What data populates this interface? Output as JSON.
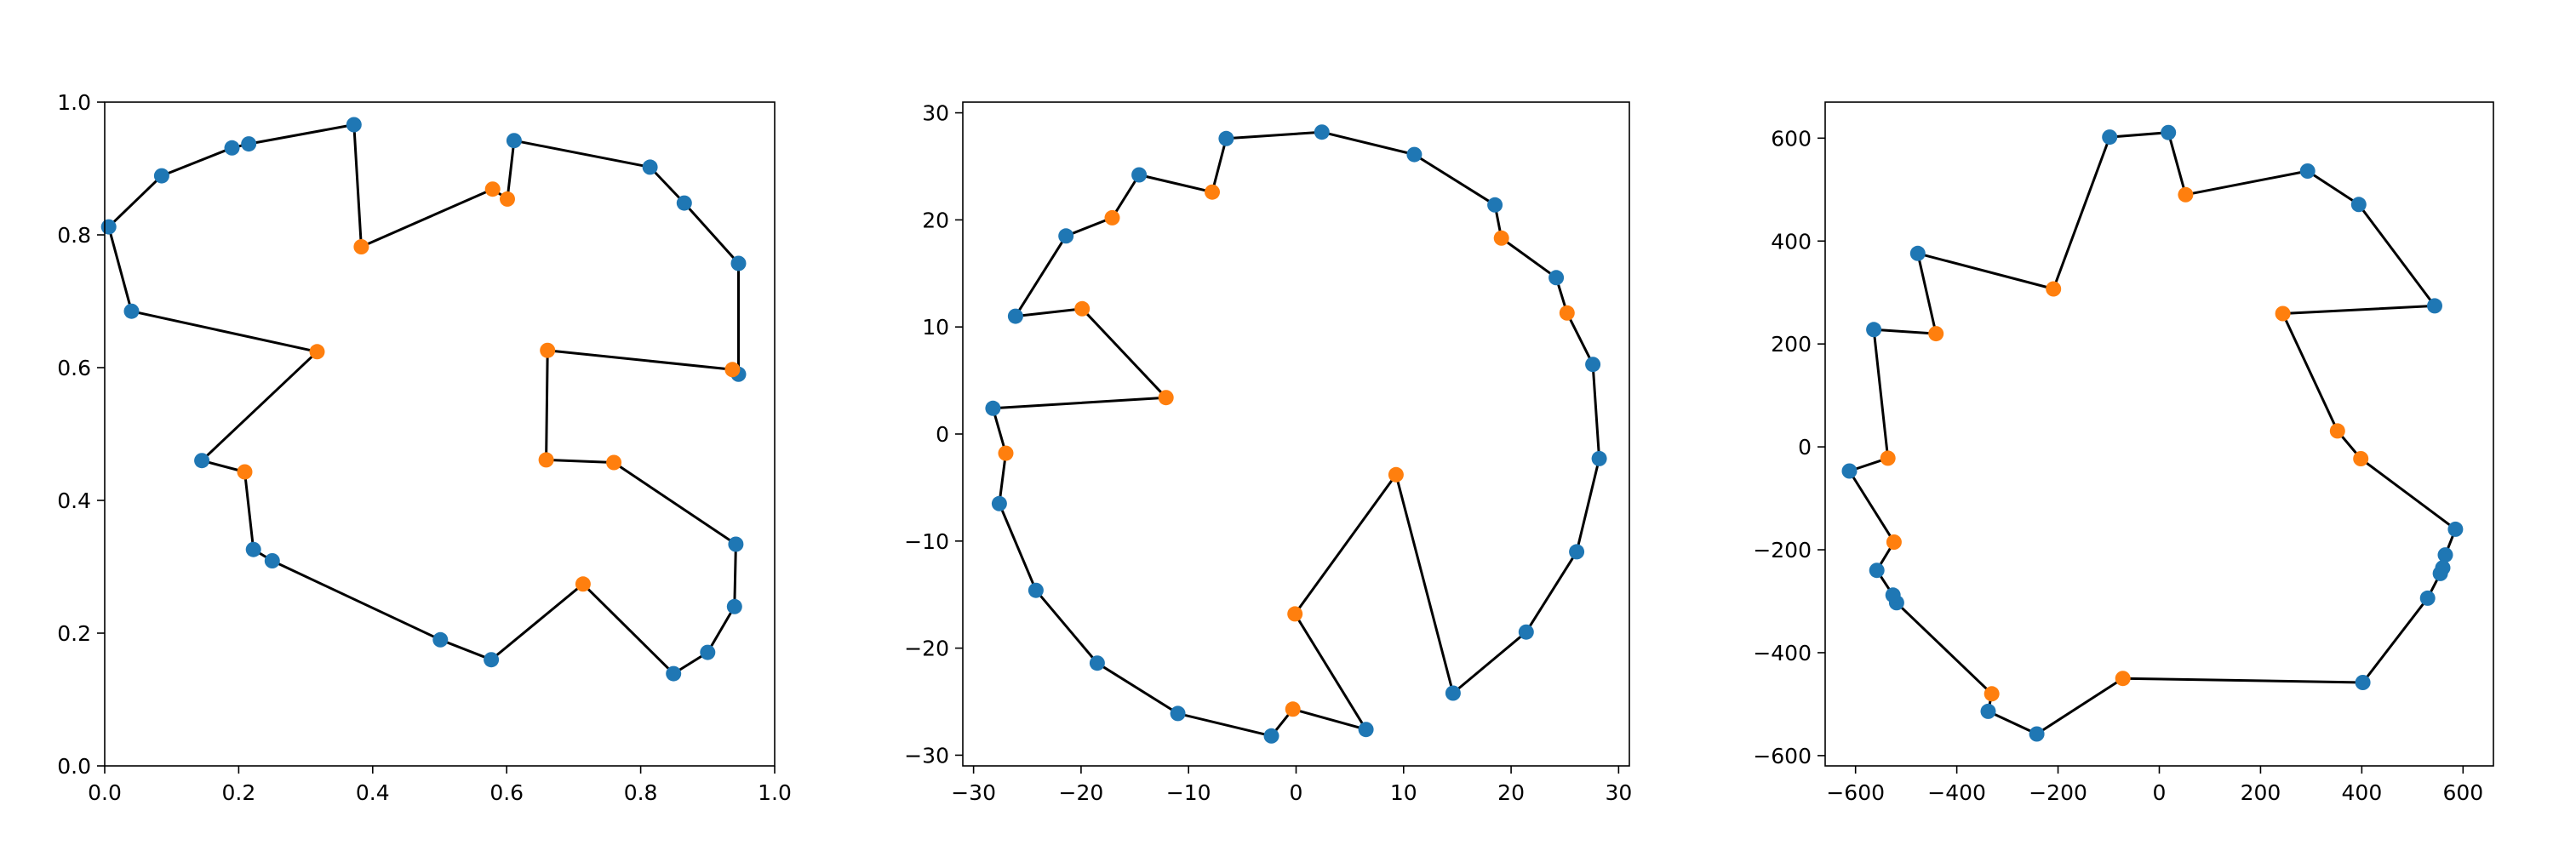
{
  "colors": {
    "hull": "#1f77b4",
    "interior": "#ff7f0e",
    "line": "#000000"
  },
  "chart_data": [
    {
      "type": "scatter",
      "title": "",
      "xlabel": "",
      "ylabel": "",
      "xlim": [
        0,
        1
      ],
      "ylim": [
        0,
        1
      ],
      "xticks": [
        0,
        0.2,
        0.4,
        0.6,
        0.8,
        1
      ],
      "yticks": [
        0,
        0.2,
        0.4,
        0.6,
        0.8,
        1
      ],
      "xtick_labels": [
        "0.0",
        "0.2",
        "0.4",
        "0.6",
        "0.8",
        "1.0"
      ],
      "ytick_labels": [
        "0.0",
        "0.2",
        "0.4",
        "0.6",
        "0.8",
        "1.0"
      ],
      "grid": false,
      "path": [
        [
          0.006,
          0.812,
          "h"
        ],
        [
          0.085,
          0.889,
          "h"
        ],
        [
          0.19,
          0.931,
          "h"
        ],
        [
          0.215,
          0.937,
          "h"
        ],
        [
          0.372,
          0.966,
          "h"
        ],
        [
          0.383,
          0.782,
          "i"
        ],
        [
          0.579,
          0.869,
          "i"
        ],
        [
          0.601,
          0.854,
          "i"
        ],
        [
          0.611,
          0.942,
          "h"
        ],
        [
          0.814,
          0.902,
          "h"
        ],
        [
          0.865,
          0.848,
          "h"
        ],
        [
          0.946,
          0.757,
          "h"
        ],
        [
          0.946,
          0.59,
          "h"
        ],
        [
          0.937,
          0.597,
          "i"
        ],
        [
          0.661,
          0.626,
          "i"
        ],
        [
          0.659,
          0.461,
          "i"
        ],
        [
          0.76,
          0.457,
          "i"
        ],
        [
          0.942,
          0.334,
          "h"
        ],
        [
          0.94,
          0.24,
          "h"
        ],
        [
          0.9,
          0.171,
          "h"
        ],
        [
          0.849,
          0.139,
          "h"
        ],
        [
          0.714,
          0.274,
          "i"
        ],
        [
          0.577,
          0.16,
          "h"
        ],
        [
          0.501,
          0.19,
          "h"
        ],
        [
          0.25,
          0.309,
          "h"
        ],
        [
          0.222,
          0.326,
          "h"
        ],
        [
          0.209,
          0.443,
          "i"
        ],
        [
          0.145,
          0.46,
          "h"
        ],
        [
          0.317,
          0.624,
          "i"
        ],
        [
          0.04,
          0.685,
          "h"
        ]
      ]
    },
    {
      "type": "scatter",
      "title": "",
      "xlabel": "",
      "ylabel": "",
      "xlim": [
        -31,
        31
      ],
      "ylim": [
        -31,
        31
      ],
      "xticks": [
        -30,
        -20,
        -10,
        0,
        10,
        20,
        30
      ],
      "yticks": [
        -30,
        -20,
        -10,
        0,
        10,
        20,
        30
      ],
      "xtick_labels": [
        "−30",
        "−20",
        "−10",
        "0",
        "10",
        "20",
        "30"
      ],
      "ytick_labels": [
        "−30",
        "−20",
        "−10",
        "0",
        "10",
        "20",
        "30"
      ],
      "grid": false,
      "path": [
        [
          2.4,
          28.2,
          "h"
        ],
        [
          11.0,
          26.1,
          "h"
        ],
        [
          18.5,
          21.4,
          "h"
        ],
        [
          19.1,
          18.3,
          "i"
        ],
        [
          24.2,
          14.6,
          "h"
        ],
        [
          25.2,
          11.3,
          "i"
        ],
        [
          27.6,
          6.5,
          "h"
        ],
        [
          28.2,
          -2.3,
          "h"
        ],
        [
          26.1,
          -11.0,
          "h"
        ],
        [
          21.4,
          -18.5,
          "h"
        ],
        [
          14.6,
          -24.2,
          "h"
        ],
        [
          9.3,
          -3.8,
          "i"
        ],
        [
          -0.1,
          -16.8,
          "i"
        ],
        [
          6.5,
          -27.6,
          "h"
        ],
        [
          -0.3,
          -25.7,
          "i"
        ],
        [
          -2.3,
          -28.2,
          "h"
        ],
        [
          -11.0,
          -26.1,
          "h"
        ],
        [
          -18.5,
          -21.4,
          "h"
        ],
        [
          -24.2,
          -14.6,
          "h"
        ],
        [
          -27.6,
          -6.5,
          "h"
        ],
        [
          -27.0,
          -1.8,
          "i"
        ],
        [
          -28.2,
          2.4,
          "h"
        ],
        [
          -12.1,
          3.4,
          "i"
        ],
        [
          -19.9,
          11.7,
          "i"
        ],
        [
          -26.1,
          11.0,
          "h"
        ],
        [
          -21.4,
          18.5,
          "h"
        ],
        [
          -17.1,
          20.2,
          "i"
        ],
        [
          -14.6,
          24.2,
          "h"
        ],
        [
          -7.8,
          22.6,
          "i"
        ],
        [
          -6.5,
          27.6,
          "h"
        ]
      ]
    },
    {
      "type": "scatter",
      "title": "",
      "xlabel": "",
      "ylabel": "",
      "xlim": [
        -660,
        660
      ],
      "ylim": [
        -620,
        670
      ],
      "xticks": [
        -600,
        -400,
        -200,
        0,
        200,
        400,
        600
      ],
      "yticks": [
        -600,
        -400,
        -200,
        0,
        200,
        400,
        600
      ],
      "xtick_labels": [
        "−600",
        "−400",
        "−200",
        "0",
        "200",
        "400",
        "600"
      ],
      "ytick_labels": [
        "−600",
        "−400",
        "−200",
        "0",
        "200",
        "400",
        "600"
      ],
      "grid": false,
      "path": [
        [
          -98,
          602,
          "h"
        ],
        [
          18,
          611,
          "h"
        ],
        [
          52,
          490,
          "i"
        ],
        [
          293,
          536,
          "h"
        ],
        [
          394,
          471,
          "h"
        ],
        [
          544,
          274,
          "h"
        ],
        [
          244,
          259,
          "i"
        ],
        [
          352,
          31,
          "i"
        ],
        [
          398,
          -23,
          "i"
        ],
        [
          585,
          -160,
          "h"
        ],
        [
          565,
          -210,
          "h"
        ],
        [
          560,
          -235,
          "h"
        ],
        [
          555,
          -246,
          "h"
        ],
        [
          530,
          -294,
          "h"
        ],
        [
          402,
          -458,
          "h"
        ],
        [
          -72,
          -450,
          "i"
        ],
        [
          -242,
          -558,
          "h"
        ],
        [
          -338,
          -514,
          "h"
        ],
        [
          -331,
          -480,
          "i"
        ],
        [
          -519,
          -303,
          "h"
        ],
        [
          -526,
          -288,
          "h"
        ],
        [
          -558,
          -240,
          "h"
        ],
        [
          -524,
          -185,
          "i"
        ],
        [
          -612,
          -47,
          "h"
        ],
        [
          -536,
          -22,
          "i"
        ],
        [
          -564,
          228,
          "h"
        ],
        [
          -441,
          220,
          "i"
        ],
        [
          -477,
          376,
          "h"
        ],
        [
          -209,
          307,
          "i"
        ]
      ]
    }
  ]
}
